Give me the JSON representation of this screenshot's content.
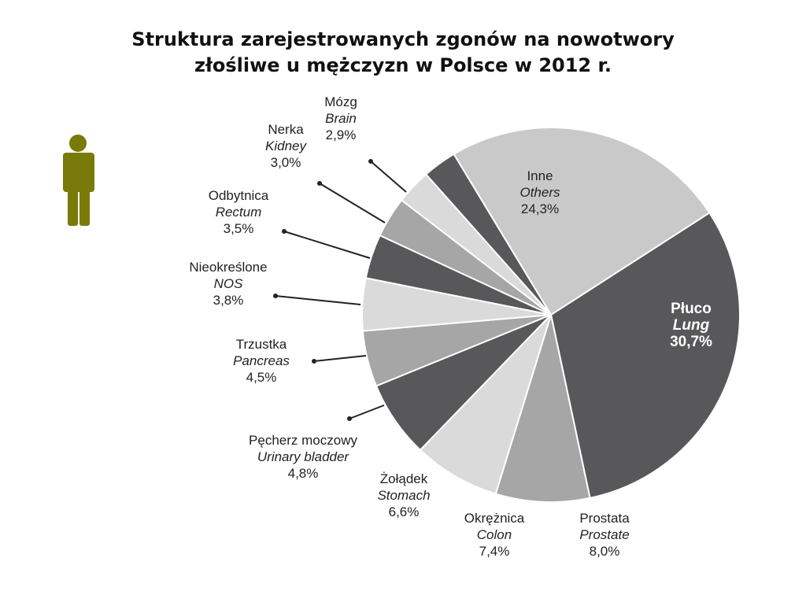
{
  "title": {
    "line1": "Struktura zarejestrowanych zgonów na nowotwory",
    "line2": "złośliwe u mężczyzn w Polsce w 2012 r."
  },
  "icon": {
    "name": "man-figure-icon",
    "color": "#7a7a0a"
  },
  "chart_data": {
    "type": "pie",
    "title": "Struktura zarejestrowanych zgonów na nowotwory złośliwe u mężczyzn w Polsce w 2012 r.",
    "slices": [
      {
        "name_pl": "Płuco",
        "name_en": "Lung",
        "value": 30.7,
        "label": "30,7%",
        "color": "#58585a"
      },
      {
        "name_pl": "Prostata",
        "name_en": "Prostate",
        "value": 8.0,
        "label": "8,0%",
        "color": "#a6a6a6"
      },
      {
        "name_pl": "Okrężnica",
        "name_en": "Colon",
        "value": 7.4,
        "label": "7,4%",
        "color": "#dadada"
      },
      {
        "name_pl": "Żołądek",
        "name_en": "Stomach",
        "value": 6.6,
        "label": "6,6%",
        "color": "#58585a"
      },
      {
        "name_pl": "Pęcherz moczowy",
        "name_en": "Urinary bladder",
        "value": 4.8,
        "label": "4,8%",
        "color": "#a6a6a6"
      },
      {
        "name_pl": "Trzustka",
        "name_en": "Pancreas",
        "value": 4.5,
        "label": "4,5%",
        "color": "#dadada"
      },
      {
        "name_pl": "Nieokreślone",
        "name_en": "NOS",
        "value": 3.8,
        "label": "3,8%",
        "color": "#58585a"
      },
      {
        "name_pl": "Odbytnica",
        "name_en": "Rectum",
        "value": 3.5,
        "label": "3,5%",
        "color": "#a6a6a6"
      },
      {
        "name_pl": "Nerka",
        "name_en": "Kidney",
        "value": 3.0,
        "label": "3,0%",
        "color": "#dadada"
      },
      {
        "name_pl": "Mózg",
        "name_en": "Brain",
        "value": 2.9,
        "label": "2,9%",
        "color": "#58585a"
      },
      {
        "name_pl": "Inne",
        "name_en": "Others",
        "value": 24.3,
        "label": "24,3%",
        "color": "#c9c9c9"
      }
    ]
  }
}
